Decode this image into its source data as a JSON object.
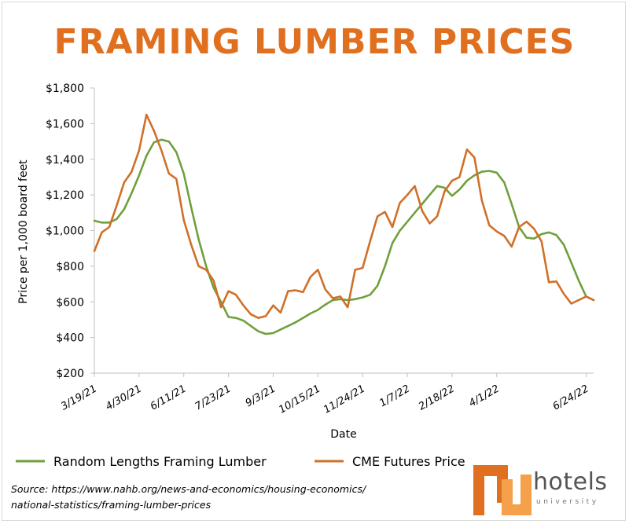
{
  "chart_data": {
    "type": "line",
    "title": "FRAMING LUMBER PRICES",
    "xlabel": "Date",
    "ylabel": "Price per 1,000 board feet",
    "ylim": [
      200,
      1800
    ],
    "yticks": [
      200,
      400,
      600,
      800,
      1000,
      1200,
      1400,
      1600,
      1800
    ],
    "ytick_labels": [
      "$200",
      "$400",
      "$600",
      "$800",
      "$1,000",
      "$1,200",
      "$1,400",
      "$1,600",
      "$1,800"
    ],
    "xlim": [
      0,
      67
    ],
    "xticks": [
      {
        "label": "3/19/21",
        "week": 0
      },
      {
        "label": "4/30/21",
        "week": 6
      },
      {
        "label": "6/11/21",
        "week": 12
      },
      {
        "label": "7/23/21",
        "week": 18
      },
      {
        "label": "9/3/21",
        "week": 24
      },
      {
        "label": "10/15/21",
        "week": 30
      },
      {
        "label": "11/24/21",
        "week": 36
      },
      {
        "label": "1/7/22",
        "week": 42
      },
      {
        "label": "2/18/22",
        "week": 48
      },
      {
        "label": "4/1/22",
        "week": 54
      },
      {
        "label": "6/24/22",
        "week": 66
      }
    ],
    "grid": false,
    "legend_position": "bottom",
    "series": [
      {
        "name": "Random Lengths Framing Lumber",
        "color": "#70a03c",
        "x": [
          0,
          1,
          2,
          3,
          4,
          5,
          6,
          7,
          8,
          9,
          10,
          11,
          12,
          13,
          14,
          15,
          16,
          17,
          18,
          19,
          20,
          21,
          22,
          23,
          24,
          25,
          26,
          27,
          28,
          29,
          30,
          31,
          32,
          33,
          34,
          35,
          36,
          37,
          38,
          39,
          40,
          41,
          42,
          43,
          44,
          45,
          46,
          47,
          48,
          49,
          50,
          51,
          52,
          53,
          54,
          55,
          56,
          57,
          58,
          59,
          60,
          61,
          62,
          63,
          64,
          65,
          66,
          67
        ],
        "values": [
          1055,
          1045,
          1045,
          1065,
          1120,
          1210,
          1310,
          1420,
          1495,
          1510,
          1500,
          1440,
          1320,
          1130,
          950,
          800,
          680,
          600,
          515,
          510,
          495,
          465,
          435,
          420,
          425,
          445,
          465,
          485,
          510,
          535,
          555,
          585,
          610,
          615,
          610,
          615,
          625,
          640,
          690,
          800,
          930,
          1000,
          1050,
          1100,
          1150,
          1200,
          1250,
          1240,
          1195,
          1230,
          1280,
          1310,
          1330,
          1335,
          1325,
          1270,
          1150,
          1020,
          960,
          955,
          980,
          990,
          975,
          920,
          820,
          720,
          630,
          610
        ]
      },
      {
        "name": "CME Futures Price",
        "color": "#d07028",
        "x": [
          0,
          1,
          2,
          3,
          4,
          5,
          6,
          7,
          8,
          9,
          10,
          11,
          12,
          13,
          14,
          15,
          16,
          17,
          18,
          19,
          20,
          21,
          22,
          23,
          24,
          25,
          26,
          27,
          28,
          29,
          30,
          31,
          32,
          33,
          34,
          35,
          36,
          37,
          38,
          39,
          40,
          41,
          42,
          43,
          44,
          45,
          46,
          47,
          48,
          49,
          50,
          51,
          52,
          53,
          54,
          55,
          56,
          57,
          58,
          59,
          60,
          61,
          62,
          63,
          64,
          65,
          66,
          67
        ],
        "values": [
          885,
          990,
          1020,
          1140,
          1270,
          1330,
          1450,
          1650,
          1560,
          1450,
          1320,
          1290,
          1060,
          920,
          800,
          780,
          720,
          570,
          660,
          640,
          580,
          530,
          510,
          520,
          580,
          540,
          660,
          665,
          655,
          740,
          780,
          670,
          620,
          630,
          570,
          780,
          790,
          940,
          1080,
          1105,
          1020,
          1155,
          1200,
          1250,
          1110,
          1040,
          1080,
          1220,
          1280,
          1300,
          1455,
          1410,
          1170,
          1030,
          995,
          970,
          910,
          1020,
          1050,
          1010,
          940,
          710,
          715,
          645,
          590,
          610,
          630,
          610
        ]
      }
    ]
  },
  "source_note": "Source: https://www.nahb.org/news-and-economics/housing-economics/\nnational-statistics/framing-lumber-prices",
  "logo": {
    "brand": "hotels",
    "sub": "university",
    "color_main": "#e0701f",
    "color_accent": "#f5a04a"
  }
}
